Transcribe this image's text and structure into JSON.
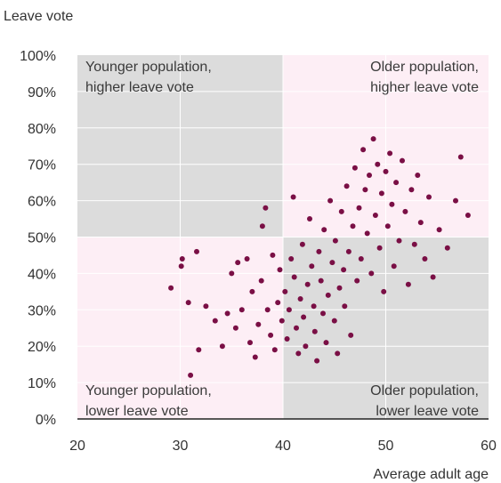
{
  "chart_data": {
    "type": "scatter",
    "title": "",
    "ylabel": "Leave vote",
    "xlabel": "Average adult age",
    "xlim": [
      20,
      60
    ],
    "ylim": [
      0,
      100
    ],
    "x_ticks": [
      "20",
      "30",
      "40",
      "50",
      "60"
    ],
    "y_ticks": [
      "0%",
      "10%",
      "20%",
      "30%",
      "40%",
      "50%",
      "60%",
      "70%",
      "80%",
      "90%",
      "100%"
    ],
    "quadrant_split": {
      "x": 40,
      "y": 50
    },
    "quadrants": {
      "top_left": {
        "line1": "Younger population,",
        "line2": "higher leave vote"
      },
      "top_right": {
        "line1": "Older population,",
        "line2": "higher leave vote"
      },
      "bottom_left": {
        "line1": "Younger population,",
        "line2": "lower leave vote"
      },
      "bottom_right": {
        "line1": "Older population,",
        "line2": "lower leave vote"
      }
    },
    "colors": {
      "points": "#7a0f45",
      "grey_quadrant": "#dcdcdc",
      "pink_quadrant": "#fdeef5",
      "grid": "#ffffff",
      "axis": "#222222"
    },
    "points": [
      [
        29.1,
        36
      ],
      [
        30.1,
        42
      ],
      [
        30.2,
        44
      ],
      [
        30.8,
        32
      ],
      [
        31.0,
        12
      ],
      [
        31.6,
        46
      ],
      [
        31.8,
        19
      ],
      [
        32.5,
        31
      ],
      [
        33.4,
        27
      ],
      [
        34.1,
        20
      ],
      [
        34.6,
        29
      ],
      [
        35.0,
        40
      ],
      [
        35.4,
        25
      ],
      [
        35.6,
        43
      ],
      [
        36.0,
        30
      ],
      [
        36.5,
        44
      ],
      [
        36.8,
        21
      ],
      [
        37.0,
        35
      ],
      [
        37.3,
        17
      ],
      [
        37.6,
        26
      ],
      [
        37.9,
        38
      ],
      [
        38.0,
        53
      ],
      [
        38.3,
        58
      ],
      [
        38.5,
        30
      ],
      [
        38.8,
        23
      ],
      [
        39.0,
        45
      ],
      [
        39.2,
        19
      ],
      [
        39.5,
        32
      ],
      [
        39.7,
        41
      ],
      [
        39.9,
        27
      ],
      [
        40.2,
        35
      ],
      [
        40.4,
        22
      ],
      [
        40.6,
        30
      ],
      [
        40.8,
        44
      ],
      [
        41.0,
        61
      ],
      [
        41.1,
        39
      ],
      [
        41.3,
        25
      ],
      [
        41.5,
        18
      ],
      [
        41.7,
        33
      ],
      [
        41.9,
        48
      ],
      [
        42.0,
        28
      ],
      [
        42.2,
        20
      ],
      [
        42.4,
        37
      ],
      [
        42.6,
        55
      ],
      [
        42.8,
        42
      ],
      [
        43.0,
        31
      ],
      [
        43.1,
        24
      ],
      [
        43.3,
        16
      ],
      [
        43.5,
        46
      ],
      [
        43.7,
        38
      ],
      [
        43.9,
        29
      ],
      [
        44.0,
        52
      ],
      [
        44.2,
        21
      ],
      [
        44.4,
        34
      ],
      [
        44.6,
        60
      ],
      [
        44.8,
        43
      ],
      [
        45.0,
        27
      ],
      [
        45.1,
        49
      ],
      [
        45.3,
        18
      ],
      [
        45.5,
        36
      ],
      [
        45.7,
        57
      ],
      [
        45.9,
        41
      ],
      [
        46.0,
        31
      ],
      [
        46.2,
        64
      ],
      [
        46.4,
        46
      ],
      [
        46.6,
        23
      ],
      [
        46.8,
        53
      ],
      [
        47.0,
        69
      ],
      [
        47.2,
        38
      ],
      [
        47.4,
        58
      ],
      [
        47.6,
        44
      ],
      [
        47.8,
        74
      ],
      [
        48.0,
        63
      ],
      [
        48.2,
        51
      ],
      [
        48.4,
        67
      ],
      [
        48.6,
        40
      ],
      [
        48.8,
        77
      ],
      [
        49.0,
        56
      ],
      [
        49.2,
        70
      ],
      [
        49.4,
        47
      ],
      [
        49.6,
        62
      ],
      [
        49.8,
        35
      ],
      [
        50.0,
        68
      ],
      [
        50.2,
        53
      ],
      [
        50.4,
        73
      ],
      [
        50.6,
        59
      ],
      [
        50.8,
        42
      ],
      [
        51.0,
        65
      ],
      [
        51.3,
        49
      ],
      [
        51.6,
        71
      ],
      [
        51.9,
        57
      ],
      [
        52.2,
        37
      ],
      [
        52.5,
        63
      ],
      [
        52.8,
        48
      ],
      [
        53.1,
        67
      ],
      [
        53.4,
        54
      ],
      [
        53.8,
        44
      ],
      [
        54.2,
        61
      ],
      [
        54.6,
        39
      ],
      [
        55.2,
        52
      ],
      [
        56.0,
        47
      ],
      [
        56.8,
        60
      ],
      [
        57.3,
        72
      ],
      [
        58.0,
        56
      ]
    ]
  }
}
